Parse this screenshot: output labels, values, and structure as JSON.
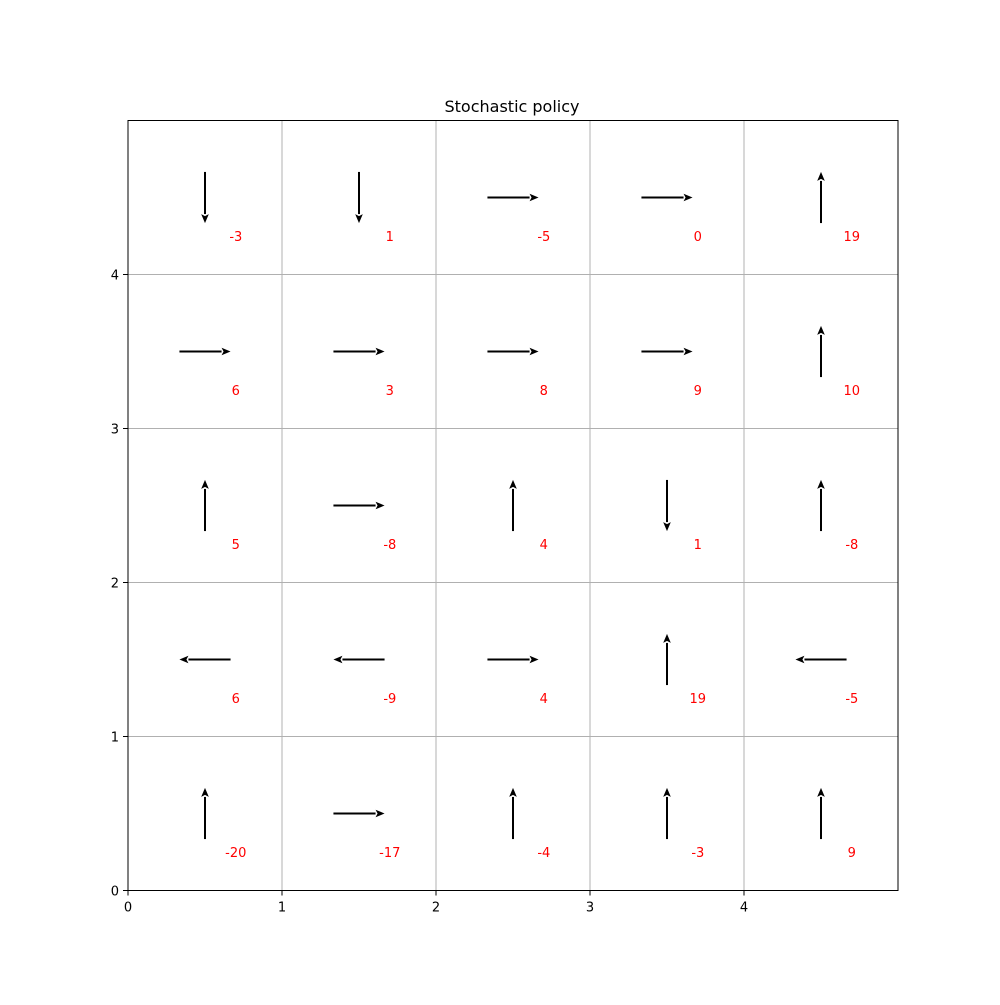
{
  "chart_data": {
    "type": "quiver",
    "title": "Stochastic policy",
    "xlabel": "",
    "ylabel": "",
    "xlim": [
      0,
      5
    ],
    "ylim": [
      0,
      5
    ],
    "xticks": [
      "0",
      "1",
      "2",
      "3",
      "4"
    ],
    "yticks": [
      "0",
      "1",
      "2",
      "3",
      "4"
    ],
    "grid": true,
    "value_color": "#ff0000",
    "arrow_color": "#000000",
    "grid_color": "#b0b0b0",
    "cells": [
      {
        "x": 0.5,
        "y": 4.5,
        "direction": "down",
        "value": "-3"
      },
      {
        "x": 1.5,
        "y": 4.5,
        "direction": "down",
        "value": "1"
      },
      {
        "x": 2.5,
        "y": 4.5,
        "direction": "right",
        "value": "-5"
      },
      {
        "x": 3.5,
        "y": 4.5,
        "direction": "right",
        "value": "0"
      },
      {
        "x": 4.5,
        "y": 4.5,
        "direction": "up",
        "value": "19"
      },
      {
        "x": 0.5,
        "y": 3.5,
        "direction": "right",
        "value": "6"
      },
      {
        "x": 1.5,
        "y": 3.5,
        "direction": "right",
        "value": "3"
      },
      {
        "x": 2.5,
        "y": 3.5,
        "direction": "right",
        "value": "8"
      },
      {
        "x": 3.5,
        "y": 3.5,
        "direction": "right",
        "value": "9"
      },
      {
        "x": 4.5,
        "y": 3.5,
        "direction": "up",
        "value": "10"
      },
      {
        "x": 0.5,
        "y": 2.5,
        "direction": "up",
        "value": "5"
      },
      {
        "x": 1.5,
        "y": 2.5,
        "direction": "right",
        "value": "-8"
      },
      {
        "x": 2.5,
        "y": 2.5,
        "direction": "up",
        "value": "4"
      },
      {
        "x": 3.5,
        "y": 2.5,
        "direction": "down",
        "value": "1"
      },
      {
        "x": 4.5,
        "y": 2.5,
        "direction": "up",
        "value": "-8"
      },
      {
        "x": 0.5,
        "y": 1.5,
        "direction": "left",
        "value": "6"
      },
      {
        "x": 1.5,
        "y": 1.5,
        "direction": "left",
        "value": "-9"
      },
      {
        "x": 2.5,
        "y": 1.5,
        "direction": "right",
        "value": "4"
      },
      {
        "x": 3.5,
        "y": 1.5,
        "direction": "up",
        "value": "19"
      },
      {
        "x": 4.5,
        "y": 1.5,
        "direction": "left",
        "value": "-5"
      },
      {
        "x": 0.5,
        "y": 0.5,
        "direction": "up",
        "value": "-20"
      },
      {
        "x": 1.5,
        "y": 0.5,
        "direction": "right",
        "value": "-17"
      },
      {
        "x": 2.5,
        "y": 0.5,
        "direction": "up",
        "value": "-4"
      },
      {
        "x": 3.5,
        "y": 0.5,
        "direction": "up",
        "value": "-3"
      },
      {
        "x": 4.5,
        "y": 0.5,
        "direction": "up",
        "value": "9"
      }
    ]
  }
}
